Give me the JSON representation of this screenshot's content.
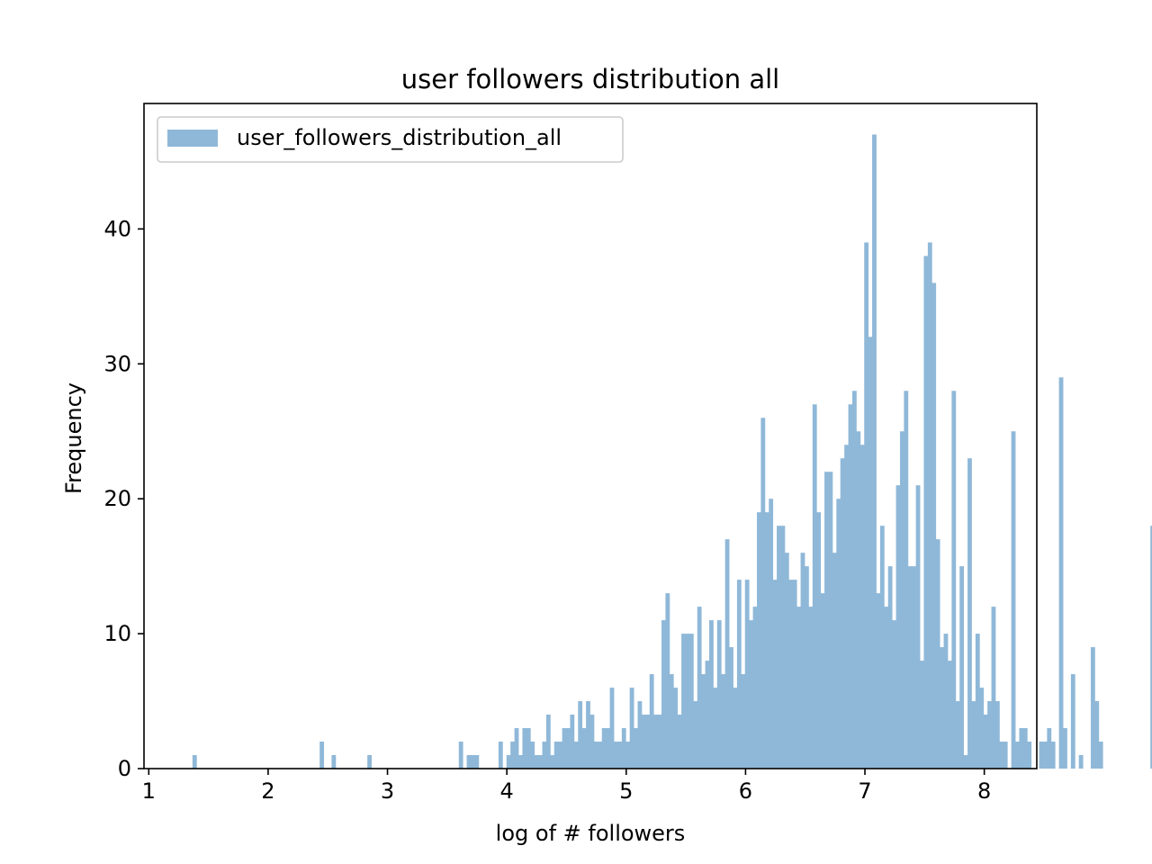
{
  "chart_data": {
    "type": "bar",
    "title": "user followers distribution all",
    "xlabel": "log of # followers",
    "ylabel": "Frequency",
    "xlim": [
      0.96,
      8.44
    ],
    "ylim": [
      0,
      49.3
    ],
    "xticks": [
      1,
      2,
      3,
      4,
      5,
      6,
      7,
      8
    ],
    "yticks": [
      0,
      10,
      20,
      30,
      40
    ],
    "grid": false,
    "legend_position": "top-left",
    "bin_start": 1.0,
    "bin_width": 0.0333,
    "series": [
      {
        "name": "user_followers_distribution_all",
        "color": "#8fb8d8",
        "values": [
          0,
          0,
          0,
          0,
          0,
          0,
          0,
          0,
          0,
          0,
          0,
          1,
          0,
          0,
          0,
          0,
          0,
          0,
          0,
          0,
          0,
          0,
          0,
          0,
          0,
          0,
          0,
          0,
          0,
          0,
          0,
          0,
          0,
          0,
          0,
          0,
          0,
          0,
          0,
          0,
          0,
          0,
          0,
          2,
          0,
          0,
          1,
          0,
          0,
          0,
          0,
          0,
          0,
          0,
          0,
          1,
          0,
          0,
          0,
          0,
          0,
          0,
          0,
          0,
          0,
          0,
          0,
          0,
          0,
          0,
          0,
          0,
          0,
          0,
          0,
          0,
          0,
          0,
          2,
          0,
          1,
          1,
          1,
          0,
          0,
          0,
          0,
          0,
          2,
          0,
          1,
          2,
          3,
          1,
          3,
          3,
          2,
          1,
          1,
          2,
          4,
          1,
          2,
          2,
          3,
          3,
          4,
          2,
          5,
          3,
          5,
          4,
          2,
          2,
          3,
          3,
          6,
          2,
          2,
          3,
          2,
          6,
          3,
          5,
          4,
          4,
          7,
          4,
          4,
          11,
          13,
          7,
          6,
          4,
          10,
          10,
          10,
          5,
          12,
          7,
          8,
          11,
          6,
          11,
          7,
          17,
          9,
          6,
          14,
          7,
          14,
          11,
          12,
          19,
          26,
          19,
          20,
          14,
          18,
          18,
          16,
          14,
          14,
          12,
          16,
          15,
          12,
          27,
          19,
          13,
          22,
          22,
          16,
          20,
          23,
          24,
          27,
          28,
          25,
          24,
          39,
          32,
          47,
          13,
          18,
          12,
          15,
          11,
          21,
          25,
          28,
          15,
          15,
          21,
          8,
          38,
          39,
          36,
          17,
          9,
          10,
          8,
          28,
          5,
          15,
          1,
          23,
          5,
          10,
          6,
          4,
          5,
          12,
          5,
          2,
          2,
          0,
          25,
          2,
          3,
          3,
          2,
          0,
          0,
          2,
          2,
          3,
          2,
          0,
          29,
          3,
          0,
          7,
          0,
          1,
          0,
          0,
          9,
          5,
          2,
          0,
          0,
          0,
          0,
          0,
          0,
          0,
          0,
          0,
          0,
          0,
          0,
          18
        ]
      }
    ]
  }
}
